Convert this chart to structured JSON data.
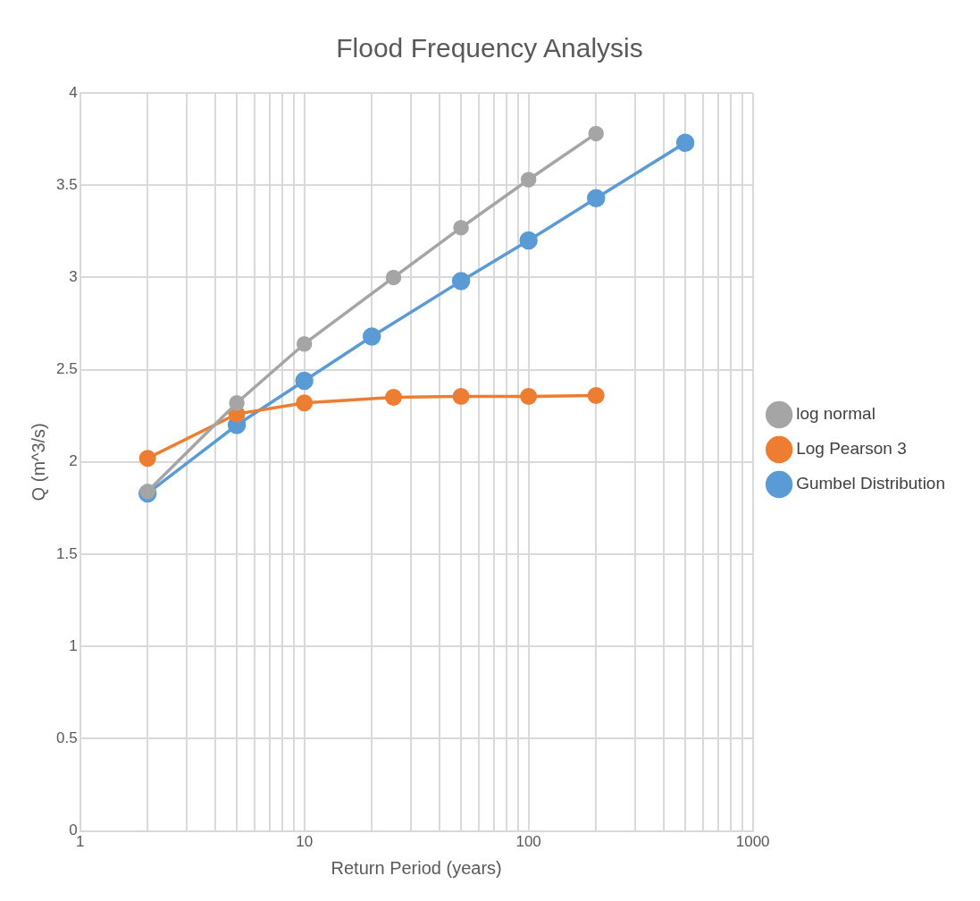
{
  "chart_data": {
    "type": "line",
    "title": "Flood Frequency Analysis",
    "xlabel": "Return Period (years)",
    "ylabel": "Q (m^3/s)",
    "log": "x",
    "xlim": [
      1,
      1000
    ],
    "xticks": [
      1,
      {
        "value": 2,
        "label": null
      },
      {
        "value": 3,
        "label": null
      },
      {
        "value": 4,
        "label": null
      },
      {
        "value": 5,
        "label": null
      },
      {
        "value": 6,
        "label": null
      },
      {
        "value": 7,
        "label": null
      },
      {
        "value": 8,
        "label": null
      },
      {
        "value": 9,
        "label": null
      },
      10,
      {
        "value": 20,
        "label": null
      },
      {
        "value": 30,
        "label": null
      },
      {
        "value": 40,
        "label": null
      },
      {
        "value": 50,
        "label": null
      },
      {
        "value": 60,
        "label": null
      },
      {
        "value": 70,
        "label": null
      },
      {
        "value": 80,
        "label": null
      },
      {
        "value": 90,
        "label": null
      },
      100,
      {
        "value": 200,
        "label": null
      },
      {
        "value": 300,
        "label": null
      },
      {
        "value": 400,
        "label": null
      },
      {
        "value": 500,
        "label": null
      },
      {
        "value": 600,
        "label": null
      },
      {
        "value": 700,
        "label": null
      },
      {
        "value": 800,
        "label": null
      },
      {
        "value": 900,
        "label": null
      },
      1000
    ],
    "ylim": [
      0,
      4
    ],
    "yticks": [
      0,
      0.5,
      1,
      1.5,
      2,
      2.5,
      3,
      3.5,
      4
    ],
    "grid": true,
    "legend": "right",
    "marker": "circle",
    "line_style": "solid",
    "series": [
      {
        "name": "Gumbel Distribution",
        "color": "#5b9bd5",
        "x": [
          2,
          5,
          10,
          20,
          50,
          100,
          200,
          500
        ],
        "values": [
          1.83,
          2.2,
          2.44,
          2.68,
          2.98,
          3.2,
          3.43,
          3.73
        ]
      },
      {
        "name": "Log Pearson 3",
        "color": "#ed7d31",
        "x": [
          2,
          5,
          10,
          25,
          50,
          100,
          200
        ],
        "values": [
          2.02,
          2.26,
          2.32,
          2.35,
          2.355,
          2.355,
          2.36
        ]
      },
      {
        "name": "log normal",
        "color": "#a5a5a5",
        "x": [
          2,
          5,
          10,
          25,
          50,
          100,
          200
        ],
        "values": [
          1.84,
          2.32,
          2.64,
          3.0,
          3.27,
          3.53,
          3.78
        ]
      }
    ]
  }
}
